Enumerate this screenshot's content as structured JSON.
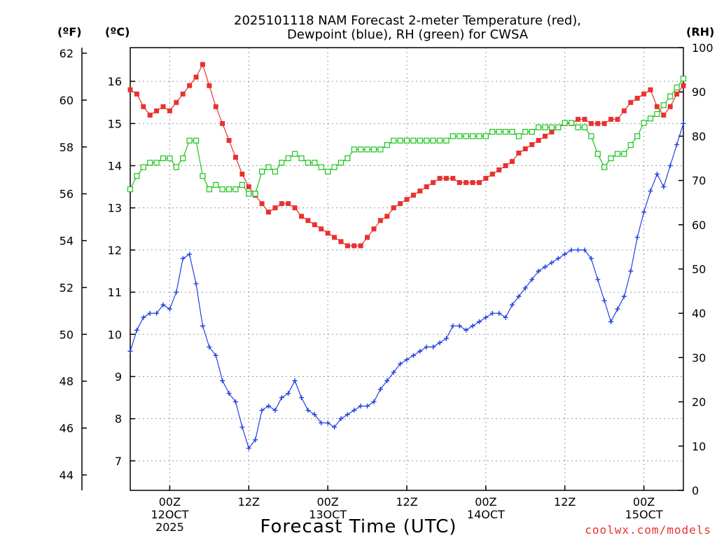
{
  "title": {
    "line1": "2025101118 NAM Forecast 2-meter Temperature (red),",
    "line2": "Dewpoint (blue), RH (green) for CWSA"
  },
  "units": {
    "fahrenheit": "(ºF)",
    "celsius": "(ºC)",
    "rh": "(RH)"
  },
  "credit": "coolwx.com/models",
  "colors": {
    "temperature": "#e8312f",
    "dewpoint": "#2040e0",
    "rh": "#18c418"
  },
  "chart_data": {
    "type": "line",
    "title": "2025101118 NAM Forecast 2-meter Temperature (red), Dewpoint (blue), RH (green) for CWSA",
    "xlabel": "Forecast Time (UTC)",
    "ylabel": "(ºC)",
    "y2label": "(RH)",
    "ylabel_left_outer": "(ºF)",
    "x_unit": "forecast hour",
    "xlim": [
      0,
      84
    ],
    "ylim": [
      6.3,
      16.8
    ],
    "y2lim": [
      0,
      100
    ],
    "x_ticks": [
      {
        "x": 6,
        "label": "00Z",
        "sub1": "12OCT",
        "sub2": "2025"
      },
      {
        "x": 18,
        "label": "12Z",
        "sub1": "",
        "sub2": ""
      },
      {
        "x": 30,
        "label": "00Z",
        "sub1": "13OCT",
        "sub2": ""
      },
      {
        "x": 42,
        "label": "12Z",
        "sub1": "",
        "sub2": ""
      },
      {
        "x": 54,
        "label": "00Z",
        "sub1": "14OCT",
        "sub2": ""
      },
      {
        "x": 66,
        "label": "12Z",
        "sub1": "",
        "sub2": ""
      },
      {
        "x": 78,
        "label": "00Z",
        "sub1": "15OCT",
        "sub2": ""
      }
    ],
    "y_ticks_c": [
      7,
      8,
      9,
      10,
      11,
      12,
      13,
      14,
      15,
      16
    ],
    "y_ticks_f": [
      44,
      46,
      48,
      50,
      52,
      54,
      56,
      58,
      60,
      62
    ],
    "y_ticks_rh": [
      0,
      10,
      20,
      30,
      40,
      50,
      60,
      70,
      80,
      90,
      100
    ],
    "grid": true,
    "legend": "none (series identified in title)",
    "series": [
      {
        "name": "2-meter Temperature (°C)",
        "axis": "celsius",
        "color": "#e8312f",
        "marker": "filled-square",
        "x": [
          0,
          1,
          2,
          3,
          4,
          5,
          6,
          7,
          8,
          9,
          10,
          11,
          12,
          13,
          14,
          15,
          16,
          17,
          18,
          19,
          20,
          21,
          22,
          23,
          24,
          25,
          26,
          27,
          28,
          29,
          30,
          31,
          32,
          33,
          34,
          35,
          36,
          37,
          38,
          39,
          40,
          41,
          42,
          43,
          44,
          45,
          46,
          47,
          48,
          49,
          50,
          51,
          52,
          53,
          54,
          55,
          56,
          57,
          58,
          59,
          60,
          61,
          62,
          63,
          64,
          65,
          66,
          67,
          68,
          69,
          70,
          71,
          72,
          73,
          74,
          75,
          76,
          77,
          78,
          79,
          80,
          81,
          82,
          83,
          84
        ],
        "values": [
          15.8,
          15.7,
          15.4,
          15.2,
          15.3,
          15.4,
          15.3,
          15.5,
          15.7,
          15.9,
          16.1,
          16.4,
          15.9,
          15.4,
          15.0,
          14.6,
          14.2,
          13.8,
          13.5,
          13.3,
          13.1,
          12.9,
          13.0,
          13.1,
          13.1,
          13.0,
          12.8,
          12.7,
          12.6,
          12.5,
          12.4,
          12.3,
          12.2,
          12.1,
          12.1,
          12.1,
          12.3,
          12.5,
          12.7,
          12.8,
          13.0,
          13.1,
          13.2,
          13.3,
          13.4,
          13.5,
          13.6,
          13.7,
          13.7,
          13.7,
          13.6,
          13.6,
          13.6,
          13.6,
          13.7,
          13.8,
          13.9,
          14.0,
          14.1,
          14.3,
          14.4,
          14.5,
          14.6,
          14.7,
          14.8,
          14.9,
          15.0,
          15.0,
          15.1,
          15.1,
          15.0,
          15.0,
          15.0,
          15.1,
          15.1,
          15.3,
          15.5,
          15.6,
          15.7,
          15.8,
          15.4,
          15.2,
          15.4,
          15.7,
          15.9
        ]
      },
      {
        "name": "Dewpoint (°C)",
        "axis": "celsius",
        "color": "#2040e0",
        "marker": "plus",
        "x": [
          0,
          1,
          2,
          3,
          4,
          5,
          6,
          7,
          8,
          9,
          10,
          11,
          12,
          13,
          14,
          15,
          16,
          17,
          18,
          19,
          20,
          21,
          22,
          23,
          24,
          25,
          26,
          27,
          28,
          29,
          30,
          31,
          32,
          33,
          34,
          35,
          36,
          37,
          38,
          39,
          40,
          41,
          42,
          43,
          44,
          45,
          46,
          47,
          48,
          49,
          50,
          51,
          52,
          53,
          54,
          55,
          56,
          57,
          58,
          59,
          60,
          61,
          62,
          63,
          64,
          65,
          66,
          67,
          68,
          69,
          70,
          71,
          72,
          73,
          74,
          75,
          76,
          77,
          78,
          79,
          80,
          81,
          82,
          83,
          84
        ],
        "values": [
          9.6,
          10.1,
          10.4,
          10.5,
          10.5,
          10.7,
          10.6,
          11.0,
          11.8,
          11.9,
          11.2,
          10.2,
          9.7,
          9.5,
          8.9,
          8.6,
          8.4,
          7.8,
          7.3,
          7.5,
          8.2,
          8.3,
          8.2,
          8.5,
          8.6,
          8.9,
          8.5,
          8.2,
          8.1,
          7.9,
          7.9,
          7.8,
          8.0,
          8.1,
          8.2,
          8.3,
          8.3,
          8.4,
          8.7,
          8.9,
          9.1,
          9.3,
          9.4,
          9.5,
          9.6,
          9.7,
          9.7,
          9.8,
          9.9,
          10.2,
          10.2,
          10.1,
          10.2,
          10.3,
          10.4,
          10.5,
          10.5,
          10.4,
          10.7,
          10.9,
          11.1,
          11.3,
          11.5,
          11.6,
          11.7,
          11.8,
          11.9,
          12.0,
          12.0,
          12.0,
          11.8,
          11.3,
          10.8,
          10.3,
          10.6,
          10.9,
          11.5,
          12.3,
          12.9,
          13.4,
          13.8,
          13.5,
          14.0,
          14.5,
          15.0
        ]
      },
      {
        "name": "Relative Humidity (%)",
        "axis": "rh",
        "color": "#18c418",
        "marker": "open-square",
        "x": [
          0,
          1,
          2,
          3,
          4,
          5,
          6,
          7,
          8,
          9,
          10,
          11,
          12,
          13,
          14,
          15,
          16,
          17,
          18,
          19,
          20,
          21,
          22,
          23,
          24,
          25,
          26,
          27,
          28,
          29,
          30,
          31,
          32,
          33,
          34,
          35,
          36,
          37,
          38,
          39,
          40,
          41,
          42,
          43,
          44,
          45,
          46,
          47,
          48,
          49,
          50,
          51,
          52,
          53,
          54,
          55,
          56,
          57,
          58,
          59,
          60,
          61,
          62,
          63,
          64,
          65,
          66,
          67,
          68,
          69,
          70,
          71,
          72,
          73,
          74,
          75,
          76,
          77,
          78,
          79,
          80,
          81,
          82,
          83,
          84
        ],
        "values": [
          68,
          71,
          73,
          74,
          74,
          75,
          75,
          73,
          75,
          79,
          79,
          71,
          68,
          69,
          68,
          68,
          68,
          69,
          67,
          67,
          72,
          73,
          72,
          74,
          75,
          76,
          75,
          74,
          74,
          73,
          72,
          73,
          74,
          75,
          77,
          77,
          77,
          77,
          77,
          78,
          79,
          79,
          79,
          79,
          79,
          79,
          79,
          79,
          79,
          80,
          80,
          80,
          80,
          80,
          80,
          81,
          81,
          81,
          81,
          80,
          81,
          81,
          82,
          82,
          82,
          82,
          83,
          83,
          82,
          82,
          80,
          76,
          73,
          75,
          76,
          76,
          78,
          80,
          83,
          84,
          85,
          87,
          89,
          91,
          93
        ]
      }
    ]
  }
}
